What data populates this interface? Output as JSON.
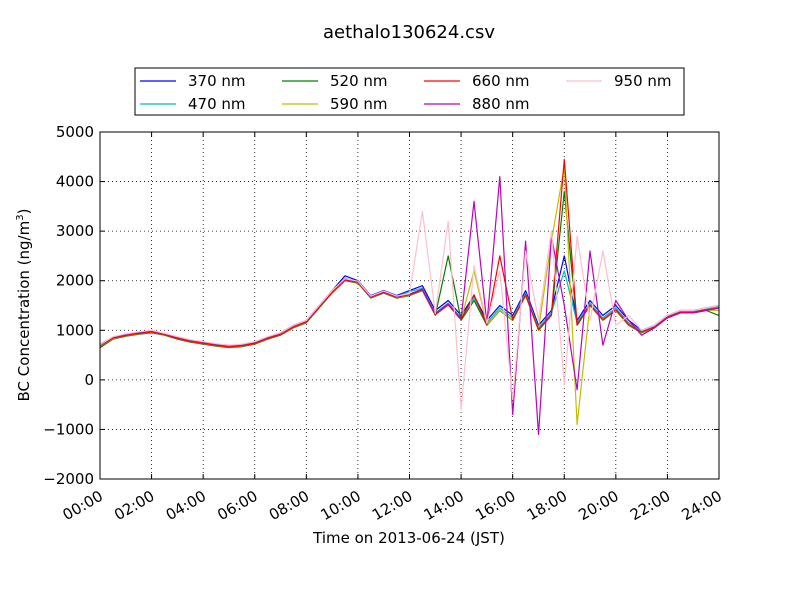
{
  "chart_data": {
    "type": "line",
    "title": "aethalo130624.csv",
    "xlabel": "Time on 2013-06-24 (JST)",
    "ylabel": "BC Concentration (ng/m³)",
    "ylabel_main": "BC Concentration (ng/m",
    "ylabel_sup": "3",
    "ylabel_end": ")",
    "xlim_hours": [
      0,
      24
    ],
    "ylim": [
      -2000,
      5000
    ],
    "x_ticks": [
      {
        "hour": 0,
        "label": "00:00"
      },
      {
        "hour": 2,
        "label": "02:00"
      },
      {
        "hour": 4,
        "label": "04:00"
      },
      {
        "hour": 6,
        "label": "06:00"
      },
      {
        "hour": 8,
        "label": "08:00"
      },
      {
        "hour": 10,
        "label": "10:00"
      },
      {
        "hour": 12,
        "label": "12:00"
      },
      {
        "hour": 14,
        "label": "14:00"
      },
      {
        "hour": 16,
        "label": "16:00"
      },
      {
        "hour": 18,
        "label": "18:00"
      },
      {
        "hour": 20,
        "label": "20:00"
      },
      {
        "hour": 22,
        "label": "22:00"
      },
      {
        "hour": 24,
        "label": "24:00"
      }
    ],
    "y_ticks": [
      {
        "value": 5000,
        "label": "5000"
      },
      {
        "value": 4000,
        "label": "4000"
      },
      {
        "value": 3000,
        "label": "3000"
      },
      {
        "value": 2000,
        "label": "2000"
      },
      {
        "value": 1000,
        "label": "1000"
      },
      {
        "value": 0,
        "label": "0"
      },
      {
        "value": -1000,
        "label": "−1000"
      },
      {
        "value": -2000,
        "label": "−2000"
      }
    ],
    "grid": true,
    "legend_placement": "top, above plot",
    "x": [
      0,
      0.5,
      1,
      1.5,
      2,
      2.5,
      3,
      3.5,
      4,
      4.5,
      5,
      5.5,
      6,
      6.5,
      7,
      7.5,
      8,
      8.5,
      9,
      9.5,
      10,
      10.5,
      11,
      11.5,
      12,
      12.5,
      13,
      13.5,
      14,
      14.5,
      15,
      15.5,
      16,
      16.5,
      17,
      17.5,
      18,
      18.5,
      19,
      19.5,
      20,
      20.5,
      21,
      21.5,
      22,
      22.5,
      23,
      23.5,
      24
    ],
    "series": [
      {
        "name": "370 nm",
        "color": "#0000ff",
        "values": [
          700,
          850,
          900,
          950,
          980,
          920,
          850,
          800,
          750,
          720,
          700,
          700,
          750,
          850,
          950,
          1100,
          1200,
          1500,
          1800,
          2100,
          2000,
          1700,
          1800,
          1700,
          1800,
          1900,
          1400,
          1600,
          1300,
          1700,
          1200,
          1500,
          1300,
          1800,
          1100,
          1400,
          2500,
          1200,
          1600,
          1300,
          1500,
          1200,
          1000,
          1100,
          1300,
          1400,
          1400,
          1450,
          1500
        ]
      },
      {
        "name": "470 nm",
        "color": "#00bfbf",
        "values": [
          720,
          860,
          900,
          940,
          970,
          910,
          840,
          790,
          740,
          710,
          690,
          700,
          760,
          860,
          940,
          1100,
          1180,
          1480,
          1780,
          2050,
          1980,
          1680,
          1780,
          1680,
          1780,
          1850,
          1350,
          1550,
          1250,
          1650,
          1150,
          1450,
          1250,
          1750,
          1050,
          1350,
          2200,
          1150,
          1550,
          1250,
          1450,
          1150,
          980,
          1080,
          1280,
          1380,
          1380,
          1430,
          1480
        ]
      },
      {
        "name": "520 nm",
        "color": "#008000",
        "values": [
          650,
          820,
          880,
          920,
          950,
          900,
          820,
          760,
          720,
          680,
          650,
          670,
          720,
          820,
          900,
          1050,
          1150,
          1450,
          1750,
          2000,
          1950,
          1650,
          1750,
          1650,
          1700,
          1800,
          1300,
          2500,
          1200,
          1600,
          1100,
          1400,
          1200,
          1700,
          1000,
          1300,
          3800,
          1100,
          1500,
          1200,
          1400,
          1100,
          950,
          1050,
          1250,
          1350,
          1350,
          1400,
          1300
        ]
      },
      {
        "name": "590 nm",
        "color": "#bfbf00",
        "values": [
          680,
          830,
          890,
          930,
          960,
          910,
          830,
          770,
          730,
          690,
          660,
          680,
          730,
          830,
          910,
          1060,
          1160,
          1460,
          1760,
          2010,
          1960,
          1660,
          1760,
          1660,
          1710,
          1810,
          1310,
          1510,
          1210,
          2200,
          1110,
          1410,
          1210,
          1710,
          1010,
          2800,
          4300,
          -900,
          1510,
          1210,
          1410,
          1110,
          960,
          1060,
          1260,
          1360,
          1360,
          1410,
          1400
        ]
      },
      {
        "name": "660 nm",
        "color": "#ff0000",
        "values": [
          690,
          840,
          895,
          935,
          965,
          915,
          835,
          775,
          735,
          695,
          665,
          685,
          735,
          835,
          915,
          1065,
          1165,
          1465,
          1765,
          2015,
          1965,
          1665,
          1765,
          1665,
          1715,
          1815,
          1315,
          1515,
          1215,
          1715,
          1115,
          2500,
          1215,
          1715,
          1015,
          1315,
          4450,
          1115,
          1515,
          1215,
          1415,
          1115,
          965,
          1065,
          1265,
          1365,
          1365,
          1415,
          1450
        ]
      },
      {
        "name": "880 nm",
        "color": "#bf00bf",
        "values": [
          700,
          860,
          920,
          960,
          990,
          930,
          860,
          800,
          760,
          720,
          690,
          710,
          760,
          860,
          940,
          1090,
          1190,
          1490,
          1790,
          2030,
          1980,
          1680,
          1780,
          1680,
          1730,
          1830,
          1330,
          1530,
          1230,
          3600,
          1130,
          4100,
          -700,
          2800,
          -1100,
          2900,
          1500,
          -200,
          2600,
          700,
          1600,
          1200,
          900,
          1050,
          1250,
          1350,
          1350,
          1400,
          1450
        ]
      },
      {
        "name": "950 nm",
        "color": "#ffc0cb",
        "values": [
          710,
          870,
          930,
          970,
          1000,
          940,
          870,
          810,
          770,
          730,
          700,
          720,
          770,
          870,
          950,
          1100,
          1200,
          1500,
          1800,
          2040,
          1990,
          1690,
          1790,
          1690,
          1740,
          3400,
          1340,
          3200,
          -600,
          2300,
          1140,
          2200,
          -400,
          2600,
          1200,
          3000,
          -100,
          2900,
          1200,
          2600,
          1100,
          1300,
          1000,
          1100,
          1300,
          1400,
          1400,
          1450,
          1500
        ]
      }
    ]
  }
}
